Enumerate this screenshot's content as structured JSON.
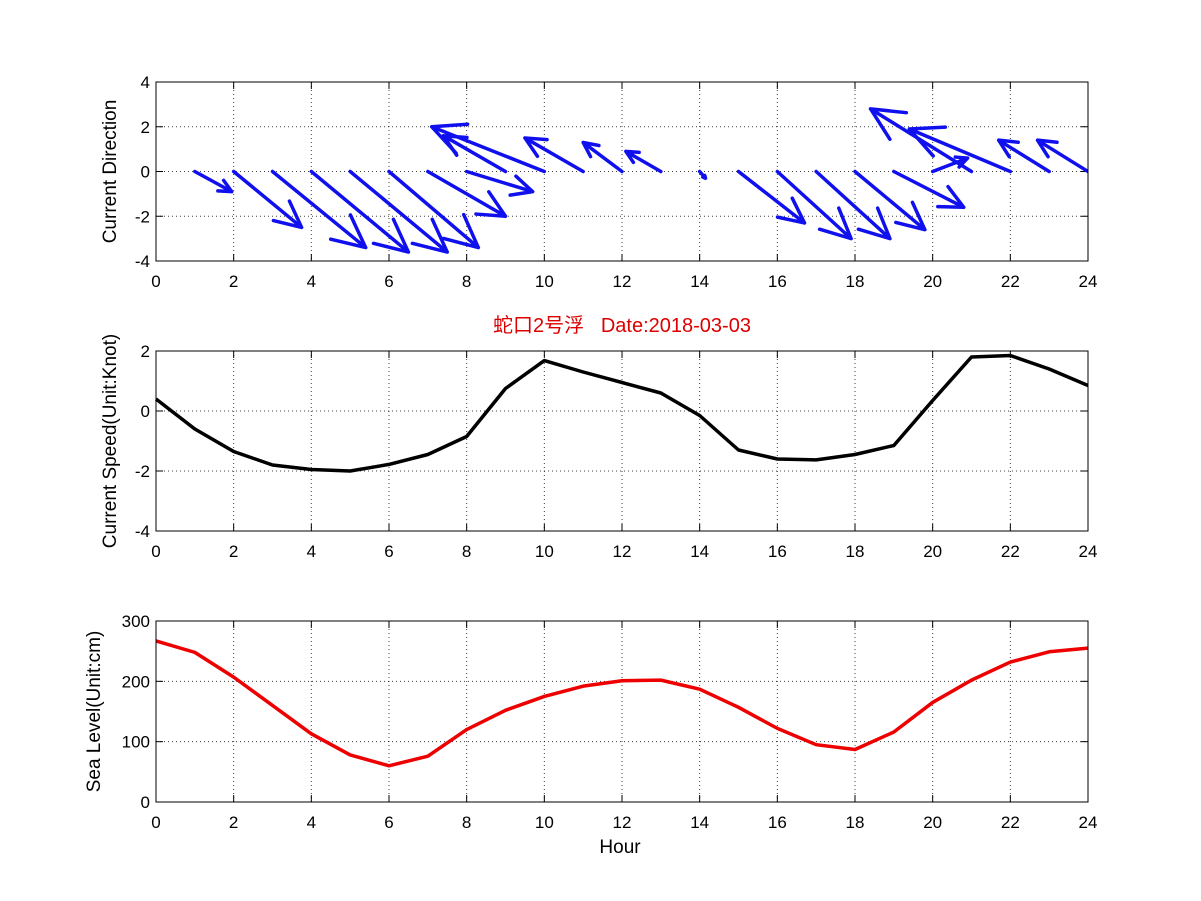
{
  "title": "蛇口2号浮   Date:2018-03-03",
  "colors": {
    "direction": "#1010ee",
    "speed": "#000000",
    "sea_level": "#ee0000",
    "title": "#dd0000"
  },
  "chart_data": [
    {
      "type": "quiver",
      "ylabel": "Current Direction",
      "xlim": [
        0,
        24
      ],
      "ylim": [
        -4,
        4
      ],
      "xticks": [
        0,
        2,
        4,
        6,
        8,
        10,
        12,
        14,
        16,
        18,
        20,
        22,
        24
      ],
      "yticks": [
        -4,
        -2,
        0,
        2,
        4
      ],
      "grid": true,
      "vectors": [
        {
          "x": 1,
          "u": 0.95,
          "v": -0.9
        },
        {
          "x": 2,
          "u": 1.75,
          "v": -2.5
        },
        {
          "x": 3,
          "u": 2.4,
          "v": -3.4
        },
        {
          "x": 4,
          "u": 2.5,
          "v": -3.6
        },
        {
          "x": 5,
          "u": 2.5,
          "v": -3.6
        },
        {
          "x": 6,
          "u": 2.3,
          "v": -3.4
        },
        {
          "x": 7,
          "u": 2.0,
          "v": -2.0
        },
        {
          "x": 8,
          "u": 1.7,
          "v": -0.9
        },
        {
          "x": 9,
          "u": -1.6,
          "v": 1.6
        },
        {
          "x": 10,
          "u": -2.9,
          "v": 2.0
        },
        {
          "x": 11,
          "u": -1.5,
          "v": 1.5
        },
        {
          "x": 12,
          "u": -1.0,
          "v": 1.3
        },
        {
          "x": 13,
          "u": -0.9,
          "v": 0.9
        },
        {
          "x": 14,
          "u": 0.15,
          "v": -0.3
        },
        {
          "x": 15,
          "u": 1.7,
          "v": -2.3
        },
        {
          "x": 16,
          "u": 1.9,
          "v": -3.0
        },
        {
          "x": 17,
          "u": 1.9,
          "v": -3.0
        },
        {
          "x": 18,
          "u": 1.8,
          "v": -2.6
        },
        {
          "x": 19,
          "u": 1.8,
          "v": -1.6
        },
        {
          "x": 20,
          "u": 0.9,
          "v": 0.6
        },
        {
          "x": 21,
          "u": -2.6,
          "v": 2.8
        },
        {
          "x": 22,
          "u": -2.6,
          "v": 1.9
        },
        {
          "x": 23,
          "u": -1.3,
          "v": 1.4
        },
        {
          "x": 24,
          "u": -1.3,
          "v": 1.4
        }
      ]
    },
    {
      "type": "line",
      "ylabel": "Current Speed(Unit:Knot)",
      "xlim": [
        0,
        24
      ],
      "ylim": [
        -4,
        2
      ],
      "xticks": [
        0,
        2,
        4,
        6,
        8,
        10,
        12,
        14,
        16,
        18,
        20,
        22,
        24
      ],
      "yticks": [
        -4,
        -2,
        0,
        2
      ],
      "grid": true,
      "x": [
        0,
        1,
        2,
        3,
        4,
        5,
        6,
        7,
        8,
        9,
        10,
        11,
        12,
        13,
        14,
        15,
        16,
        17,
        18,
        19,
        20,
        21,
        22,
        23,
        24
      ],
      "y": [
        0.4,
        -0.6,
        -1.35,
        -1.8,
        -1.95,
        -2.0,
        -1.78,
        -1.45,
        -0.85,
        0.75,
        1.68,
        1.3,
        0.95,
        0.6,
        -0.15,
        -1.3,
        -1.6,
        -1.63,
        -1.45,
        -1.15,
        0.35,
        1.8,
        1.85,
        1.4,
        0.85
      ]
    },
    {
      "type": "line",
      "ylabel": "Sea Level(Unit:cm)",
      "xlabel": "Hour",
      "xlim": [
        0,
        24
      ],
      "ylim": [
        0,
        300
      ],
      "xticks": [
        0,
        2,
        4,
        6,
        8,
        10,
        12,
        14,
        16,
        18,
        20,
        22,
        24
      ],
      "yticks": [
        0,
        100,
        200,
        300
      ],
      "grid": true,
      "x": [
        0,
        1,
        2,
        3,
        4,
        5,
        6,
        7,
        8,
        9,
        10,
        11,
        12,
        13,
        14,
        15,
        16,
        17,
        18,
        19,
        20,
        21,
        22,
        23,
        24
      ],
      "y": [
        267,
        248,
        207,
        160,
        113,
        78,
        60,
        76,
        120,
        152,
        175,
        192,
        201,
        202,
        187,
        157,
        122,
        95,
        87,
        116,
        165,
        202,
        232,
        249,
        255
      ]
    }
  ]
}
